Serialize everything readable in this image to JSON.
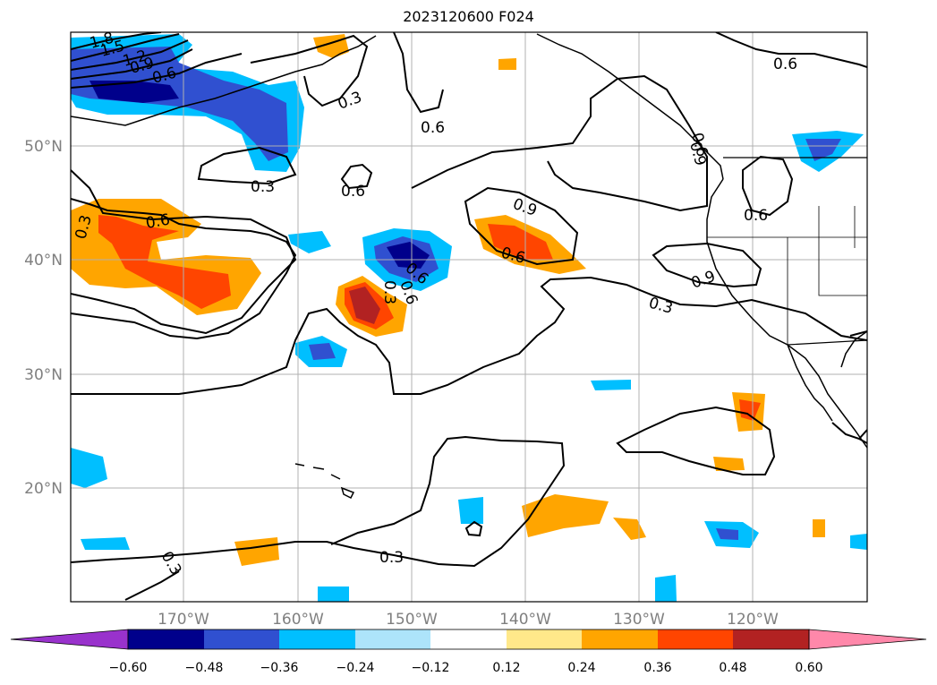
{
  "title": "2023120600 F024",
  "colors": {
    "extend_low": "#9932cc",
    "bins": [
      "#00008b",
      "#3050d0",
      "#00bfff",
      "#ade4fa",
      "#ffffff",
      "#ffe88a",
      "#ffa500",
      "#ff4500",
      "#b22222"
    ],
    "extend_high": "#ff88aa"
  },
  "map": {
    "longitude_ticks": [
      "170°W",
      "160°W",
      "150°W",
      "140°W",
      "130°W",
      "120°W"
    ],
    "latitude_ticks": [
      "50°N",
      "40°N",
      "30°N",
      "20°N"
    ],
    "contour_labels": [
      "1.8",
      "1.5",
      "1.2",
      "0.9",
      "0.6",
      "0.3",
      "0.6",
      "0.3",
      "0.6",
      "0.3",
      "0.6",
      "0.6",
      "0.6",
      "0.9",
      "0.6",
      "0.6",
      "0.6",
      "0.9",
      "0.6",
      "0.3",
      "0.9",
      "0.3",
      "0.3",
      "0.3"
    ]
  },
  "colorbar": {
    "ticks": [
      "−0.60",
      "−0.48",
      "−0.36",
      "−0.24",
      "−0.12",
      "0.12",
      "0.24",
      "0.36",
      "0.48",
      "0.60"
    ]
  }
}
